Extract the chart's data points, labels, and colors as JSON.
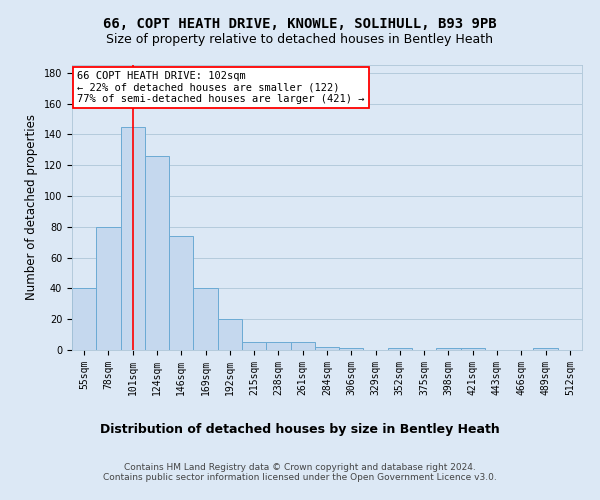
{
  "title_line1": "66, COPT HEATH DRIVE, KNOWLE, SOLIHULL, B93 9PB",
  "title_line2": "Size of property relative to detached houses in Bentley Heath",
  "xlabel": "Distribution of detached houses by size in Bentley Heath",
  "ylabel": "Number of detached properties",
  "categories": [
    "55sqm",
    "78sqm",
    "101sqm",
    "124sqm",
    "146sqm",
    "169sqm",
    "192sqm",
    "215sqm",
    "238sqm",
    "261sqm",
    "284sqm",
    "306sqm",
    "329sqm",
    "352sqm",
    "375sqm",
    "398sqm",
    "421sqm",
    "443sqm",
    "466sqm",
    "489sqm",
    "512sqm"
  ],
  "values": [
    40,
    80,
    145,
    126,
    74,
    40,
    20,
    5,
    5,
    5,
    2,
    1,
    0,
    1,
    0,
    1,
    1,
    0,
    0,
    1,
    0
  ],
  "bar_color": "#c5d8ee",
  "bar_edge_color": "#6baad4",
  "vertical_line_x": 2,
  "annotation_box_text": "66 COPT HEATH DRIVE: 102sqm\n← 22% of detached houses are smaller (122)\n77% of semi-detached houses are larger (421) →",
  "ylim": [
    0,
    185
  ],
  "yticks": [
    0,
    20,
    40,
    60,
    80,
    100,
    120,
    140,
    160,
    180
  ],
  "footer_line1": "Contains HM Land Registry data © Crown copyright and database right 2024.",
  "footer_line2": "Contains public sector information licensed under the Open Government Licence v3.0.",
  "background_color": "#dce8f5",
  "plot_bg_color": "#dce8f5",
  "grid_color": "#aec6d8",
  "title_fontsize": 10,
  "subtitle_fontsize": 9,
  "tick_fontsize": 7,
  "ylabel_fontsize": 8.5,
  "xlabel_fontsize": 9,
  "footer_fontsize": 6.5,
  "annotation_fontsize": 7.5
}
